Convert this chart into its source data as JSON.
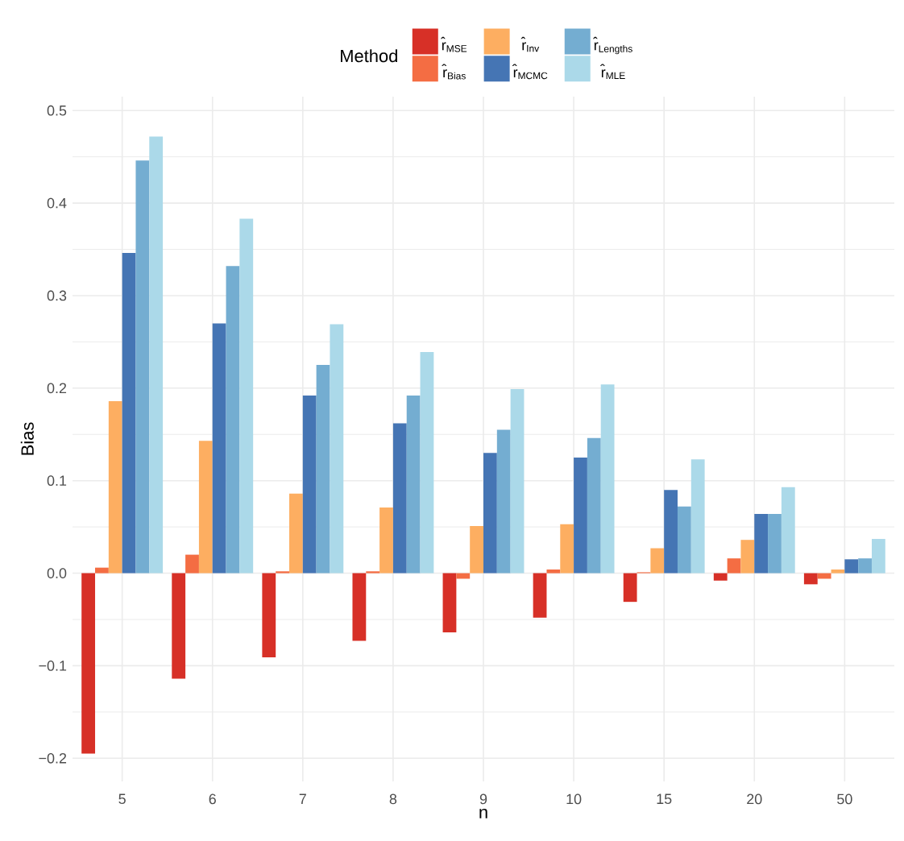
{
  "chart_data": {
    "type": "bar",
    "xlabel": "n",
    "ylabel": "Bias",
    "legend_title": "Method",
    "legend": "top",
    "grid": true,
    "categories": [
      "5",
      "6",
      "7",
      "8",
      "9",
      "10",
      "15",
      "20",
      "50"
    ],
    "ylim": [
      -0.225,
      0.515
    ],
    "yticks": [
      {
        "value": -0.2,
        "label": "−0.2"
      },
      {
        "value": -0.1,
        "label": "−0.1"
      },
      {
        "value": 0,
        "label": "0.0"
      },
      {
        "value": 0.1,
        "label": "0.1"
      },
      {
        "value": 0.2,
        "label": "0.2"
      },
      {
        "value": 0.3,
        "label": "0.3"
      },
      {
        "value": 0.4,
        "label": "0.4"
      },
      {
        "value": 0.5,
        "label": "0.5"
      }
    ],
    "series": [
      {
        "name": "r̂$_{MSE}$",
        "color": "#d73027",
        "values": [
          -0.195,
          -0.114,
          -0.091,
          -0.073,
          -0.064,
          -0.048,
          -0.031,
          -0.008,
          -0.012
        ]
      },
      {
        "name": "r̂$_{Bias}$",
        "color": "#f46d43",
        "values": [
          0.006,
          0.02,
          0.002,
          0.002,
          -0.006,
          0.004,
          0.001,
          0.016,
          -0.006
        ]
      },
      {
        "name": "r̂$_{Inv}$",
        "color": "#fdae61",
        "values": [
          0.186,
          0.143,
          0.086,
          0.071,
          0.051,
          0.053,
          0.027,
          0.036,
          0.004
        ]
      },
      {
        "name": "r̂$_{MCMC}$",
        "color": "#4575b4",
        "values": [
          0.346,
          0.27,
          0.192,
          0.162,
          0.13,
          0.125,
          0.09,
          0.064,
          0.015
        ]
      },
      {
        "name": "r̂$_{Lengths}$",
        "color": "#74add1",
        "values": [
          0.446,
          0.332,
          0.225,
          0.192,
          0.155,
          0.146,
          0.072,
          0.064,
          0.016
        ]
      },
      {
        "name": "r̂$_{MLE}$",
        "color": "#abd9e9",
        "values": [
          0.472,
          0.383,
          0.269,
          0.239,
          0.199,
          0.204,
          0.123,
          0.093,
          0.037
        ]
      }
    ]
  }
}
